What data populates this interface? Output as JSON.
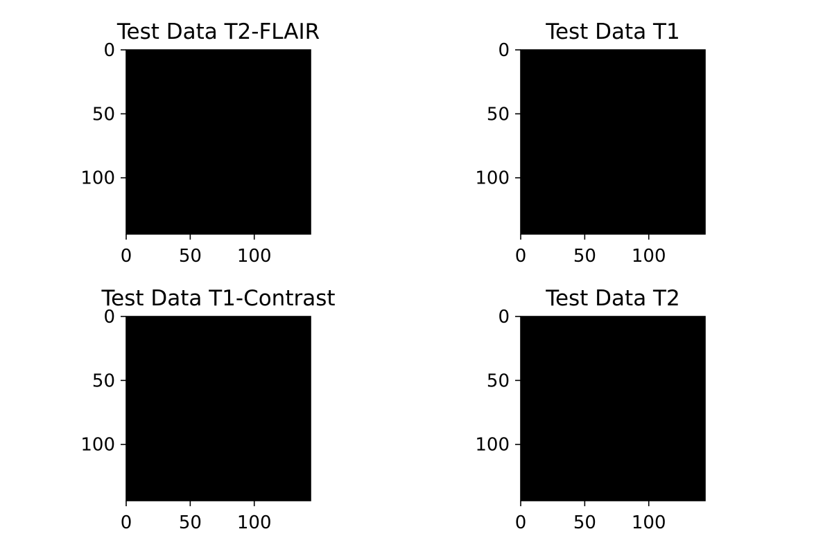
{
  "chart_data": [
    {
      "type": "heatmap",
      "title": "Test Data T2-FLAIR",
      "x_ticks": [
        0,
        50,
        100
      ],
      "y_ticks": [
        0,
        50,
        100
      ],
      "xlim": [
        0,
        144
      ],
      "ylim": [
        144,
        0
      ],
      "y_inverted": true,
      "colormap": "gray",
      "fill_color": "#000000",
      "grid": false,
      "legend": "none"
    },
    {
      "type": "heatmap",
      "title": "Test Data T1",
      "x_ticks": [
        0,
        50,
        100
      ],
      "y_ticks": [
        0,
        50,
        100
      ],
      "xlim": [
        0,
        144
      ],
      "ylim": [
        144,
        0
      ],
      "y_inverted": true,
      "colormap": "gray",
      "fill_color": "#000000",
      "grid": false,
      "legend": "none"
    },
    {
      "type": "heatmap",
      "title": "Test Data T1-Contrast",
      "x_ticks": [
        0,
        50,
        100
      ],
      "y_ticks": [
        0,
        50,
        100
      ],
      "xlim": [
        0,
        144
      ],
      "ylim": [
        144,
        0
      ],
      "y_inverted": true,
      "colormap": "gray",
      "fill_color": "#000000",
      "grid": false,
      "legend": "none"
    },
    {
      "type": "heatmap",
      "title": "Test Data T2",
      "x_ticks": [
        0,
        50,
        100
      ],
      "y_ticks": [
        0,
        50,
        100
      ],
      "xlim": [
        0,
        144
      ],
      "ylim": [
        144,
        0
      ],
      "y_inverted": true,
      "colormap": "gray",
      "fill_color": "#000000",
      "grid": false,
      "legend": "none"
    }
  ]
}
